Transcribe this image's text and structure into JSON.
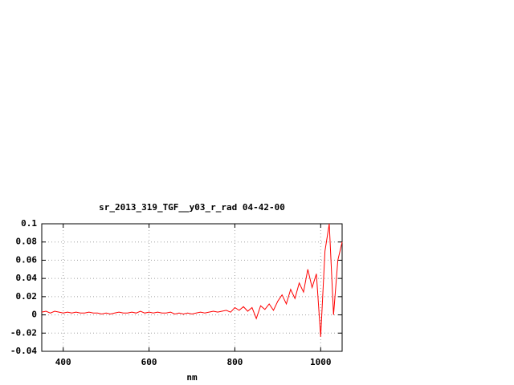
{
  "chart_data": {
    "type": "line",
    "title": "sr_2013_319_TGF__y03_r_rad 04-42-00",
    "xlabel": "nm",
    "x": [
      350,
      360,
      370,
      380,
      390,
      400,
      410,
      420,
      430,
      440,
      450,
      460,
      470,
      480,
      490,
      500,
      510,
      520,
      530,
      540,
      550,
      560,
      570,
      580,
      590,
      600,
      610,
      620,
      630,
      640,
      650,
      660,
      670,
      680,
      690,
      700,
      710,
      720,
      730,
      740,
      750,
      760,
      770,
      780,
      790,
      800,
      810,
      820,
      830,
      840,
      850,
      860,
      870,
      880,
      890,
      900,
      910,
      920,
      930,
      940,
      950,
      960,
      970,
      980,
      990,
      1000,
      1010,
      1020,
      1030,
      1040,
      1050
    ],
    "series": [
      {
        "color": "#ff0000",
        "values": [
          0.003,
          0.004,
          0.002,
          0.004,
          0.003,
          0.002,
          0.003,
          0.002,
          0.003,
          0.002,
          0.002,
          0.003,
          0.002,
          0.002,
          0.001,
          0.002,
          0.001,
          0.002,
          0.003,
          0.002,
          0.002,
          0.003,
          0.002,
          0.004,
          0.002,
          0.003,
          0.002,
          0.003,
          0.002,
          0.002,
          0.003,
          0.001,
          0.002,
          0.001,
          0.002,
          0.001,
          0.002,
          0.003,
          0.002,
          0.003,
          0.004,
          0.003,
          0.004,
          0.005,
          0.003,
          0.008,
          0.005,
          0.009,
          0.004,
          0.008,
          -0.004,
          0.01,
          0.006,
          0.012,
          0.005,
          0.015,
          0.022,
          0.012,
          0.028,
          0.018,
          0.035,
          0.025,
          0.05,
          0.03,
          0.045,
          -0.024,
          0.07,
          0.1,
          0.0,
          0.06,
          0.08
        ]
      }
    ],
    "xlim": [
      350,
      1050
    ],
    "xticks": [
      400,
      600,
      800,
      1000
    ],
    "ylim": [
      -0.04,
      0.1
    ],
    "yticks": [
      -0.04,
      -0.02,
      0,
      0.02,
      0.04,
      0.06,
      0.08,
      0.1
    ],
    "grid": true
  }
}
